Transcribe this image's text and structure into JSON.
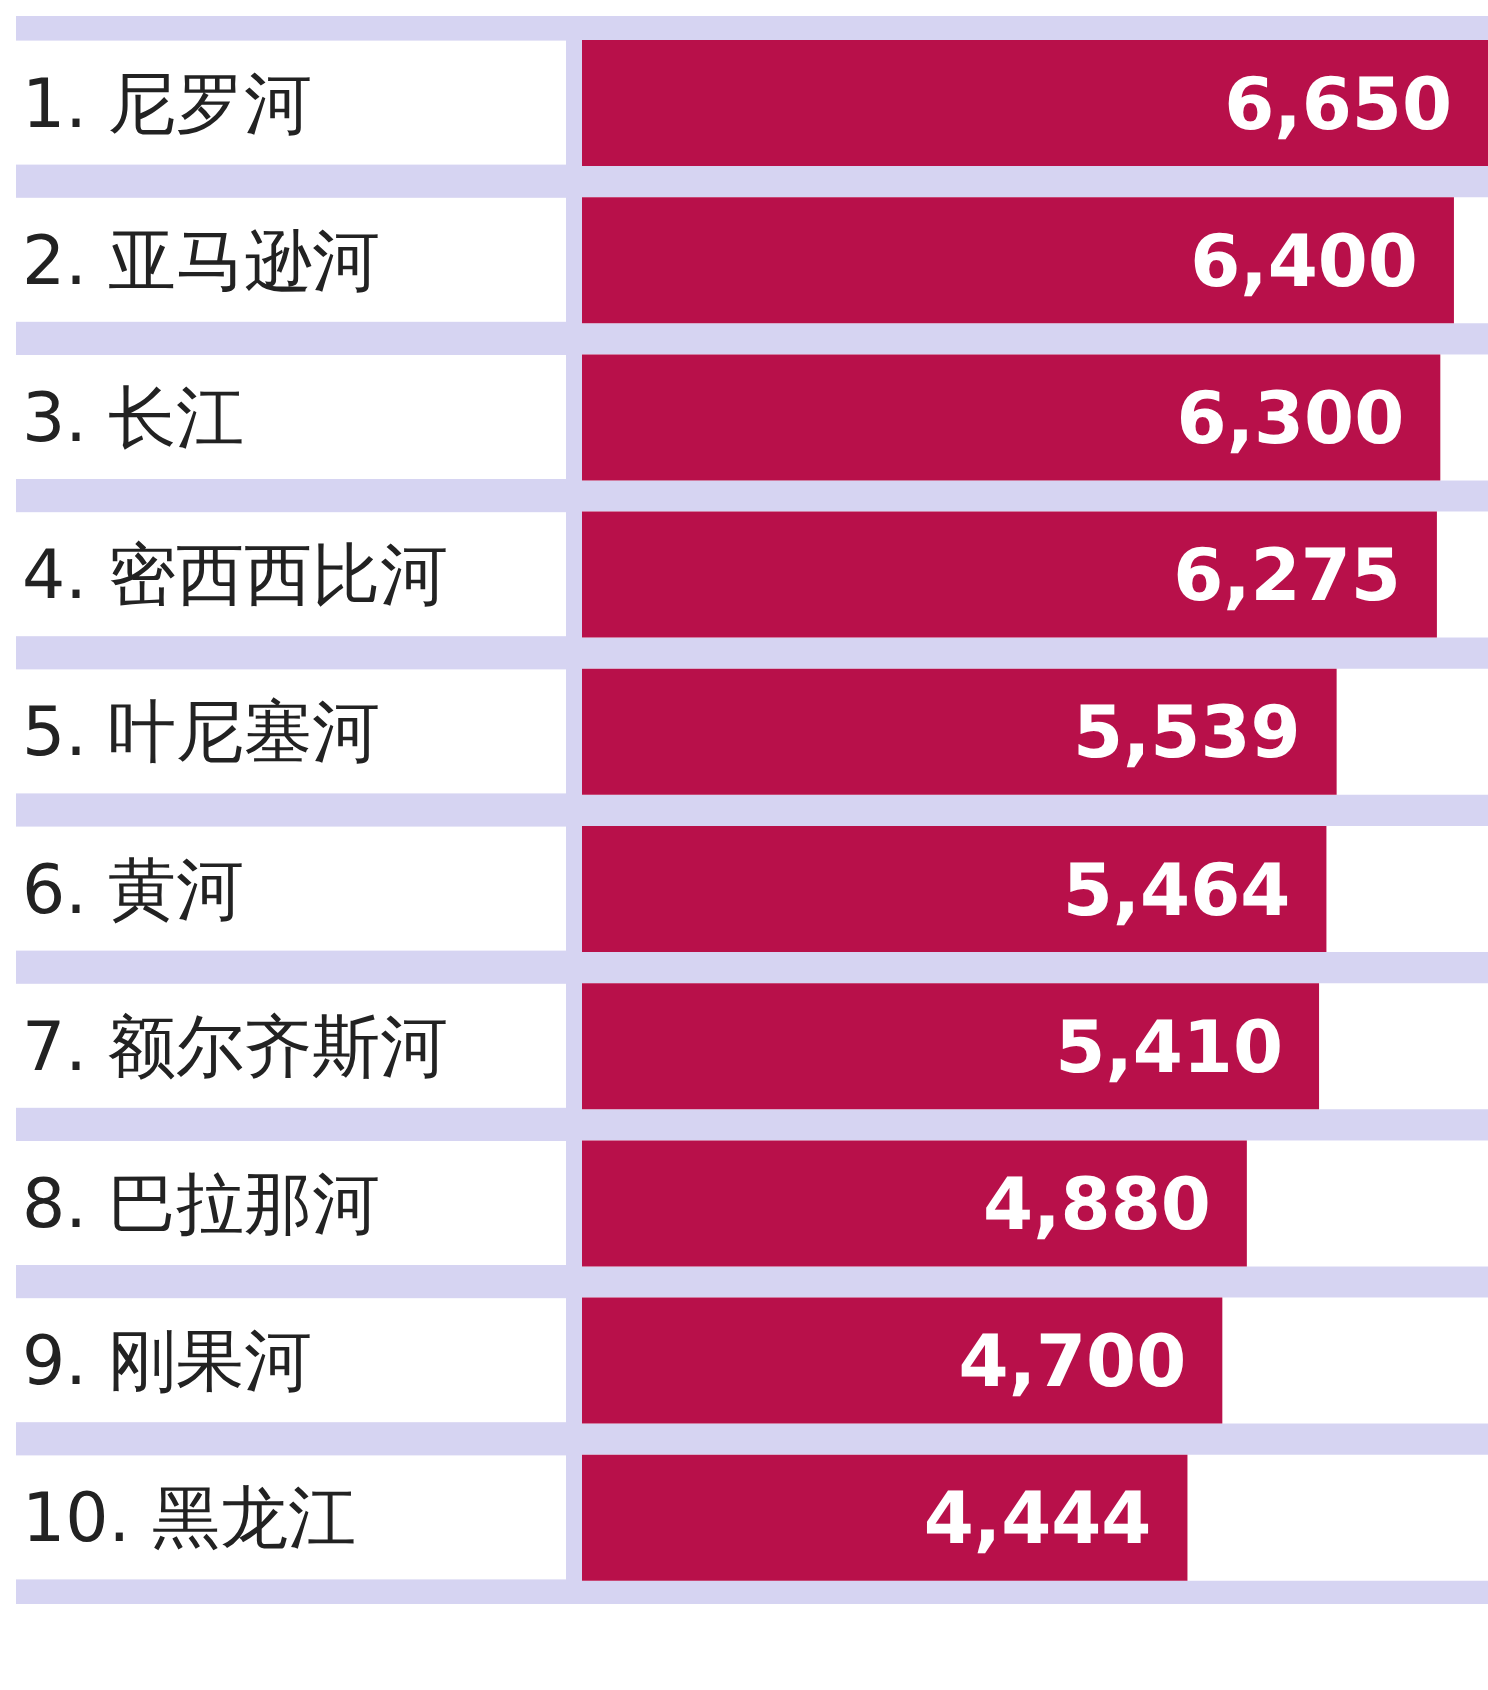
{
  "chart_data": {
    "type": "bar",
    "orientation": "horizontal",
    "categories": [
      "1. 尼罗河",
      "2. 亚马逊河",
      "3. 长江",
      "4. 密西西比河",
      "5. 叶尼塞河",
      "6. 黄河",
      "7. 额尔齐斯河",
      "8. 巴拉那河",
      "9. 刚果河",
      "10. 黑龙江"
    ],
    "values": [
      6650,
      6400,
      6300,
      6275,
      5539,
      5464,
      5410,
      4880,
      4700,
      4444
    ],
    "value_labels": [
      "6,650",
      "6,400",
      "6,300",
      "6,275",
      "5,539",
      "5,464",
      "5,410",
      "4,880",
      "4,700",
      "4,444"
    ],
    "color": "#b8104a",
    "grid": false,
    "legend": false
  }
}
